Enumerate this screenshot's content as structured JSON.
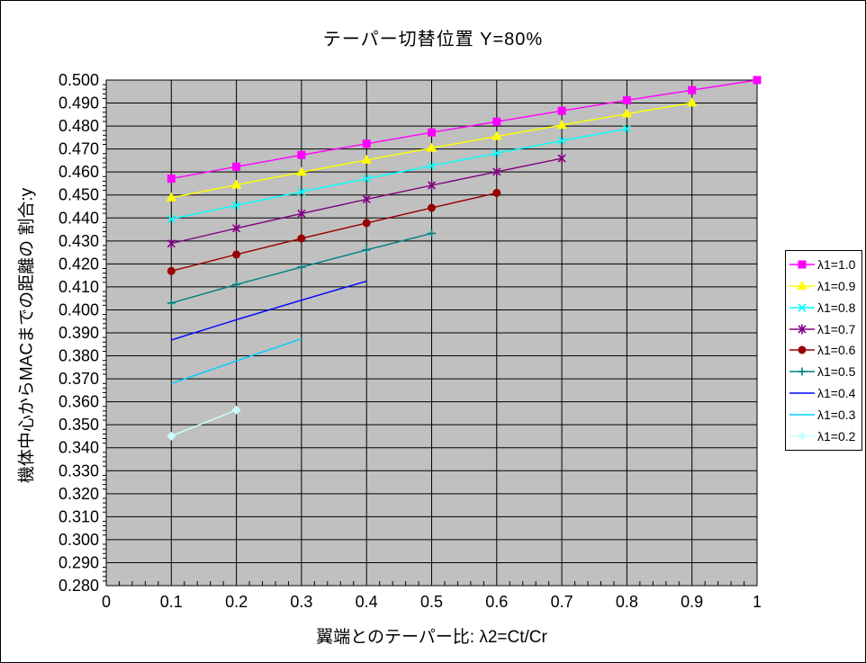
{
  "chart_data": {
    "type": "line",
    "title": "テーパー切替位置 Y=80%",
    "xlabel": "翼端とのテーパー比: λ2=Ct/Cr",
    "ylabel": "機体中心からMACまでの距離の 割合:y",
    "xlim": [
      0,
      1
    ],
    "ylim": [
      0.28,
      0.5
    ],
    "x_tick_labels": [
      "0",
      "0.1",
      "0.2",
      "0.3",
      "0.4",
      "0.5",
      "0.6",
      "0.7",
      "0.8",
      "0.9",
      "1"
    ],
    "y_tick_labels": [
      "0.500",
      "0.490",
      "0.480",
      "0.470",
      "0.460",
      "0.450",
      "0.440",
      "0.430",
      "0.420",
      "0.410",
      "0.400",
      "0.390",
      "0.380",
      "0.370",
      "0.360",
      "0.350",
      "0.340",
      "0.330",
      "0.320",
      "0.310",
      "0.300",
      "0.290",
      "0.280"
    ],
    "y_tick_step": 0.01,
    "x_minor_step": 0.02,
    "y_minor_step": 0.002,
    "grid": true,
    "plot_bg": "#C0C0C0",
    "grid_color": "#000000",
    "legend_position": "right",
    "series": [
      {
        "name": "λ1=1.0",
        "color": "#FF00FF",
        "marker": "square",
        "x": [
          0.1,
          0.2,
          0.3,
          0.4,
          0.5,
          0.6,
          0.7,
          0.8,
          0.9,
          1.0
        ],
        "y": [
          0.4571,
          0.4623,
          0.4674,
          0.4723,
          0.4772,
          0.4819,
          0.4866,
          0.4912,
          0.4956,
          0.5
        ]
      },
      {
        "name": "λ1=0.9",
        "color": "#FFFF00",
        "marker": "triangle",
        "x": [
          0.1,
          0.2,
          0.3,
          0.4,
          0.5,
          0.6,
          0.7,
          0.8,
          0.9
        ],
        "y": [
          0.4488,
          0.4544,
          0.4599,
          0.4652,
          0.4704,
          0.4755,
          0.4804,
          0.4853,
          0.4901
        ]
      },
      {
        "name": "λ1=0.8",
        "color": "#00FFFF",
        "marker": "x",
        "x": [
          0.1,
          0.2,
          0.3,
          0.4,
          0.5,
          0.6,
          0.7,
          0.8
        ],
        "y": [
          0.4395,
          0.4455,
          0.4514,
          0.4571,
          0.4627,
          0.4682,
          0.4736,
          0.4788
        ]
      },
      {
        "name": "λ1=0.7",
        "color": "#800080",
        "marker": "star",
        "x": [
          0.1,
          0.2,
          0.3,
          0.4,
          0.5,
          0.6,
          0.7
        ],
        "y": [
          0.4289,
          0.4355,
          0.4419,
          0.4481,
          0.4542,
          0.4601,
          0.4659
        ]
      },
      {
        "name": "λ1=0.6",
        "color": "#990000",
        "marker": "circle",
        "x": [
          0.1,
          0.2,
          0.3,
          0.4,
          0.5,
          0.6
        ],
        "y": [
          0.4169,
          0.4241,
          0.4311,
          0.4378,
          0.4444,
          0.4509
        ]
      },
      {
        "name": "λ1=0.5",
        "color": "#008080",
        "marker": "plus",
        "x": [
          0.1,
          0.2,
          0.3,
          0.4,
          0.5
        ],
        "y": [
          0.403,
          0.411,
          0.4186,
          0.4261,
          0.4333
        ]
      },
      {
        "name": "λ1=0.4",
        "color": "#0000FF",
        "marker": "none",
        "x": [
          0.1,
          0.2,
          0.3,
          0.4
        ],
        "y": [
          0.3869,
          0.3957,
          0.4042,
          0.4125
        ]
      },
      {
        "name": "λ1=0.3",
        "color": "#00CCFF",
        "marker": "none",
        "x": [
          0.1,
          0.2,
          0.3
        ],
        "y": [
          0.3679,
          0.3778,
          0.3874
        ]
      },
      {
        "name": "λ1=0.2",
        "color": "#CCFFFF",
        "marker": "diamond",
        "x": [
          0.1,
          0.2
        ],
        "y": [
          0.3451,
          0.3564
        ]
      }
    ]
  }
}
